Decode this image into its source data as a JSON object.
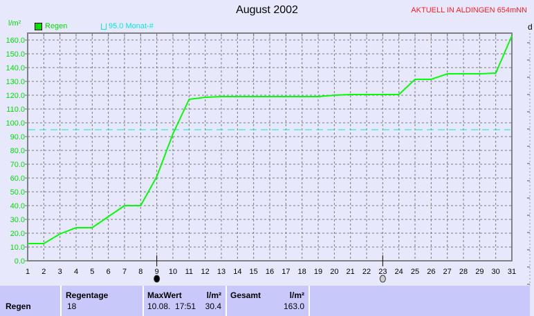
{
  "header": {
    "title": "August 2002",
    "station": "AKTUELL IN ALDINGEN 654mNN",
    "right_axis_label": "d"
  },
  "legend": {
    "series_label": "Regen",
    "reference_label": "95.0 Monat-#"
  },
  "chart_data": {
    "type": "line",
    "ylabel": "l/m²",
    "x": [
      1,
      2,
      3,
      4,
      5,
      6,
      7,
      8,
      9,
      10,
      11,
      12,
      13,
      14,
      15,
      16,
      17,
      18,
      19,
      20,
      21,
      22,
      23,
      24,
      25,
      26,
      27,
      28,
      29,
      30,
      31
    ],
    "series": [
      {
        "name": "Regen",
        "color": "#00ff00",
        "values": [
          12.5,
          12.5,
          19.5,
          24,
          24,
          32,
          40,
          40,
          61,
          92,
          117,
          118.5,
          119,
          119,
          119,
          119,
          119,
          119,
          119,
          120,
          120.5,
          120.5,
          120.5,
          120.5,
          131.5,
          131.5,
          135.5,
          135.5,
          135.5,
          136,
          163
        ]
      }
    ],
    "reference_line": {
      "label": "95.0 Monat-#",
      "value": 95.0,
      "color": "#00e8e8"
    },
    "ylim": [
      0,
      160
    ],
    "yticks": [
      "0.0",
      "10.0",
      "20.0",
      "30.0",
      "40.0",
      "50.0",
      "60.0",
      "70.0",
      "80.0",
      "90.0",
      "100.0",
      "110.0",
      "120.0",
      "130.0",
      "140.0",
      "150.0",
      "160.0"
    ],
    "xticks": [
      "1",
      "2",
      "3",
      "4",
      "5",
      "6",
      "7",
      "8",
      "9",
      "10",
      "11",
      "12",
      "13",
      "14",
      "15",
      "16",
      "17",
      "18",
      "19",
      "20",
      "21",
      "22",
      "23",
      "24",
      "25",
      "26",
      "27",
      "28",
      "29",
      "30",
      "31"
    ],
    "grid": true,
    "legend": "top-left",
    "markers": [
      {
        "day": 9,
        "icon": "new-moon-icon"
      },
      {
        "day": 23,
        "icon": "full-moon-icon"
      }
    ]
  },
  "summary": {
    "row_label": "Regen",
    "regentage_label": "Regentage",
    "regentage_value": "18",
    "maxwert_label": "MaxWert",
    "maxwert_unit": "l/m²",
    "maxwert_time": "10.08.  17:51",
    "maxwert_value": "30.4",
    "gesamt_label": "Gesamt",
    "gesamt_unit": "l/m²",
    "gesamt_value": "163.0"
  }
}
